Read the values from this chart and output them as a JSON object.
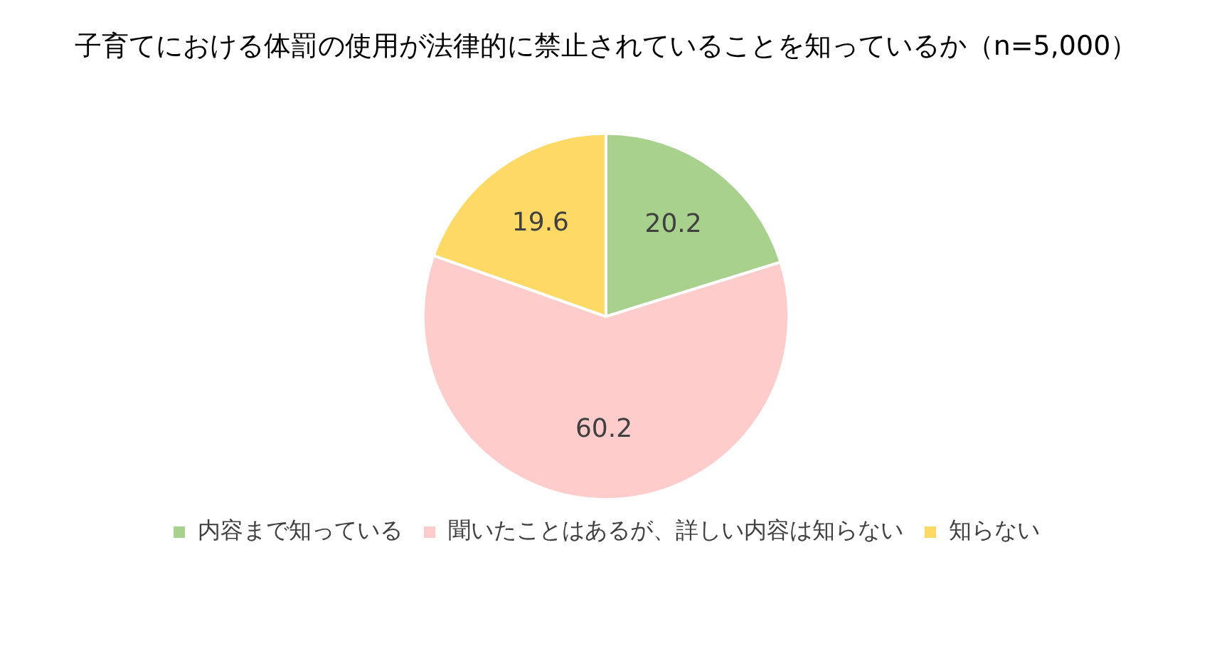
{
  "chart_data": {
    "type": "pie",
    "title": "子育てにおける体罰の使用が法律的に禁止されていることを知っているか（n=5,000）",
    "categories": [
      "内容まで知っている",
      "聞いたことはあるが、詳しい内容は知らない",
      "知らない"
    ],
    "values": [
      20.2,
      60.2,
      19.6
    ],
    "colors": [
      "#a9d18e",
      "#ffcccc",
      "#ffd966"
    ],
    "data_labels": true,
    "legend": "bottom"
  }
}
